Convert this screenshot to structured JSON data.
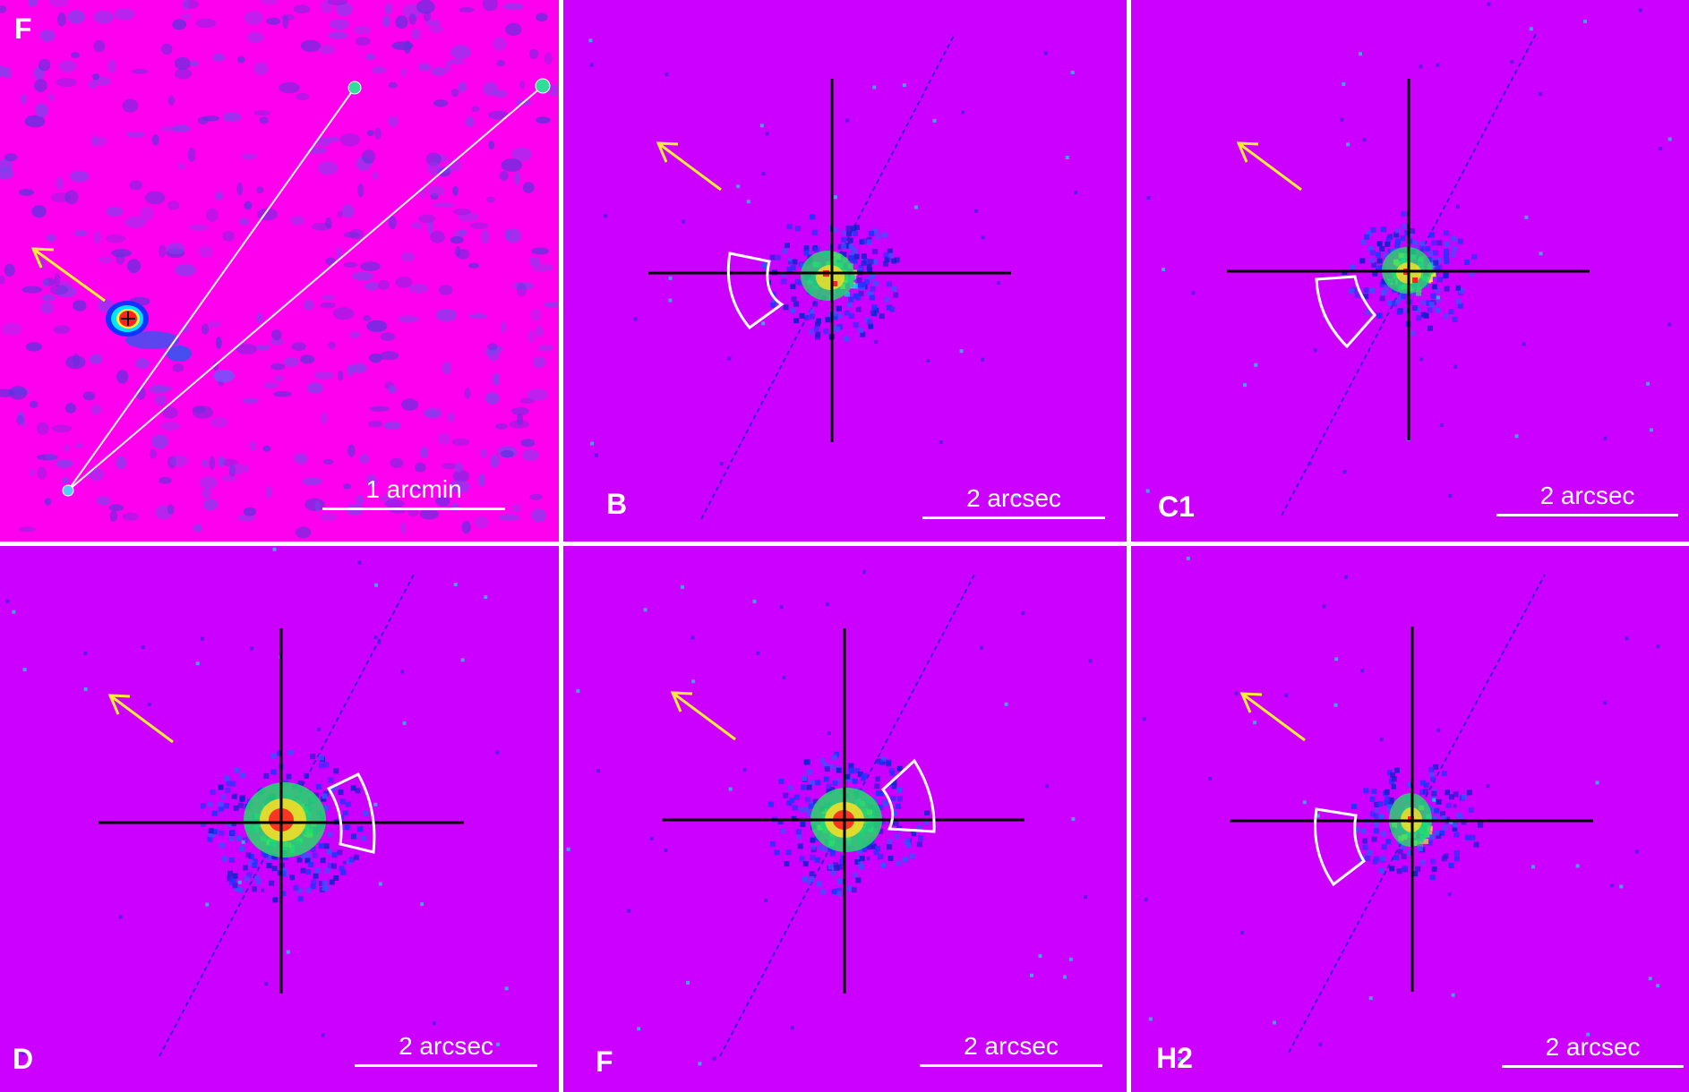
{
  "panels": [
    {
      "id": "p1",
      "label": "F",
      "scale_text": "1 arcmin",
      "kind": "wide"
    },
    {
      "id": "p2",
      "label": "B",
      "scale_text": "2 arcsec",
      "kind": "zoom"
    },
    {
      "id": "p3",
      "label": "C1",
      "scale_text": "2 arcsec",
      "kind": "zoom"
    },
    {
      "id": "p4",
      "label": "D",
      "scale_text": "2 arcsec",
      "kind": "zoom"
    },
    {
      "id": "p5",
      "label": "F",
      "scale_text": "2 arcsec",
      "kind": "zoom"
    },
    {
      "id": "p6",
      "label": "H2",
      "scale_text": "2 arcsec",
      "kind": "zoom"
    }
  ],
  "colors": {
    "wide_background": "#ff00ee",
    "zoom_background": "#cc00ff",
    "separator": "#ffffff",
    "arrow": "#ffee33",
    "crosshair": "#000000",
    "readout_streak": "#3322cc",
    "region_outline": "#ffffff",
    "source_core": "#ff2222"
  }
}
